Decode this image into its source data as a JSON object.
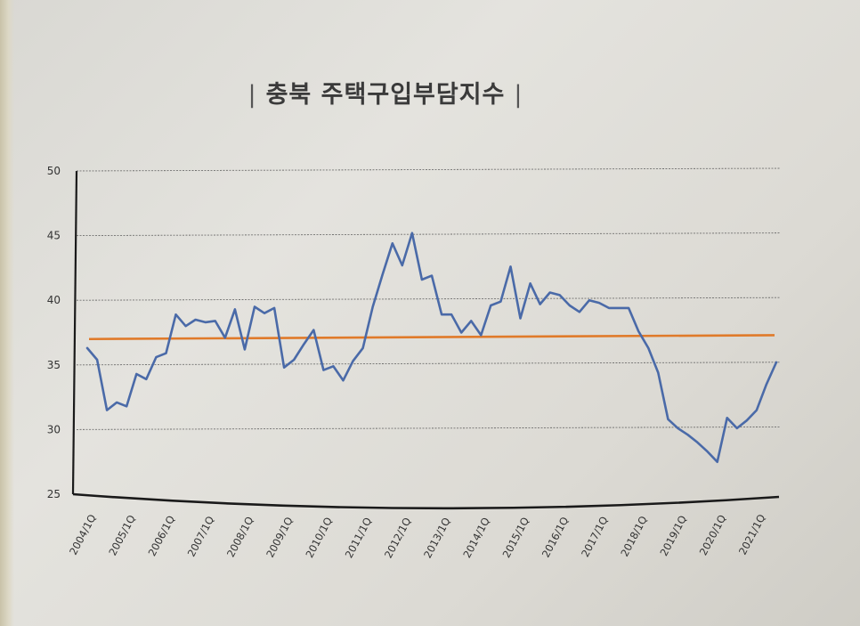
{
  "chart_data": {
    "type": "line",
    "title": "충북 주택구입부담지수",
    "title_decor": "|",
    "ylim": [
      25,
      50
    ],
    "yticks": [
      25,
      30,
      35,
      40,
      45,
      50
    ],
    "xtick_labels": [
      "2004/1Q",
      "2005/1Q",
      "2006/1Q",
      "2007/1Q",
      "2008/1Q",
      "2009/1Q",
      "2010/1Q",
      "2011/1Q",
      "2012/1Q",
      "2013/1Q",
      "2014/1Q",
      "2015/1Q",
      "2016/1Q",
      "2017/1Q",
      "2018/1Q",
      "2019/1Q",
      "2020/1Q",
      "2021/1Q"
    ],
    "grid": true,
    "series": [
      {
        "color": "#4a6aa8",
        "values": [
          36.3,
          35.4,
          31.5,
          32.1,
          31.8,
          34.3,
          33.9,
          35.6,
          35.9,
          38.9,
          38.0,
          38.5,
          38.3,
          38.4,
          37.1,
          39.3,
          36.2,
          39.5,
          39.0,
          39.4,
          34.8,
          35.4,
          36.6,
          37.7,
          34.6,
          34.9,
          33.8,
          35.3,
          36.3,
          39.5,
          42.0,
          44.4,
          42.7,
          45.2,
          41.6,
          41.9,
          38.9,
          38.9,
          37.5,
          38.4,
          37.3,
          39.6,
          39.9,
          42.6,
          38.6,
          41.3,
          39.7,
          40.6,
          40.4,
          39.6,
          39.1,
          40.0,
          39.8,
          39.4,
          39.4,
          39.4,
          37.6,
          36.3,
          34.4,
          30.8,
          30.1,
          29.6,
          29.0,
          28.3,
          27.5,
          30.9,
          30.1,
          30.7,
          31.5,
          33.5,
          35.2
        ]
      },
      {
        "color": "#e07a2a",
        "values": [
          37.0,
          37.3
        ]
      }
    ]
  }
}
